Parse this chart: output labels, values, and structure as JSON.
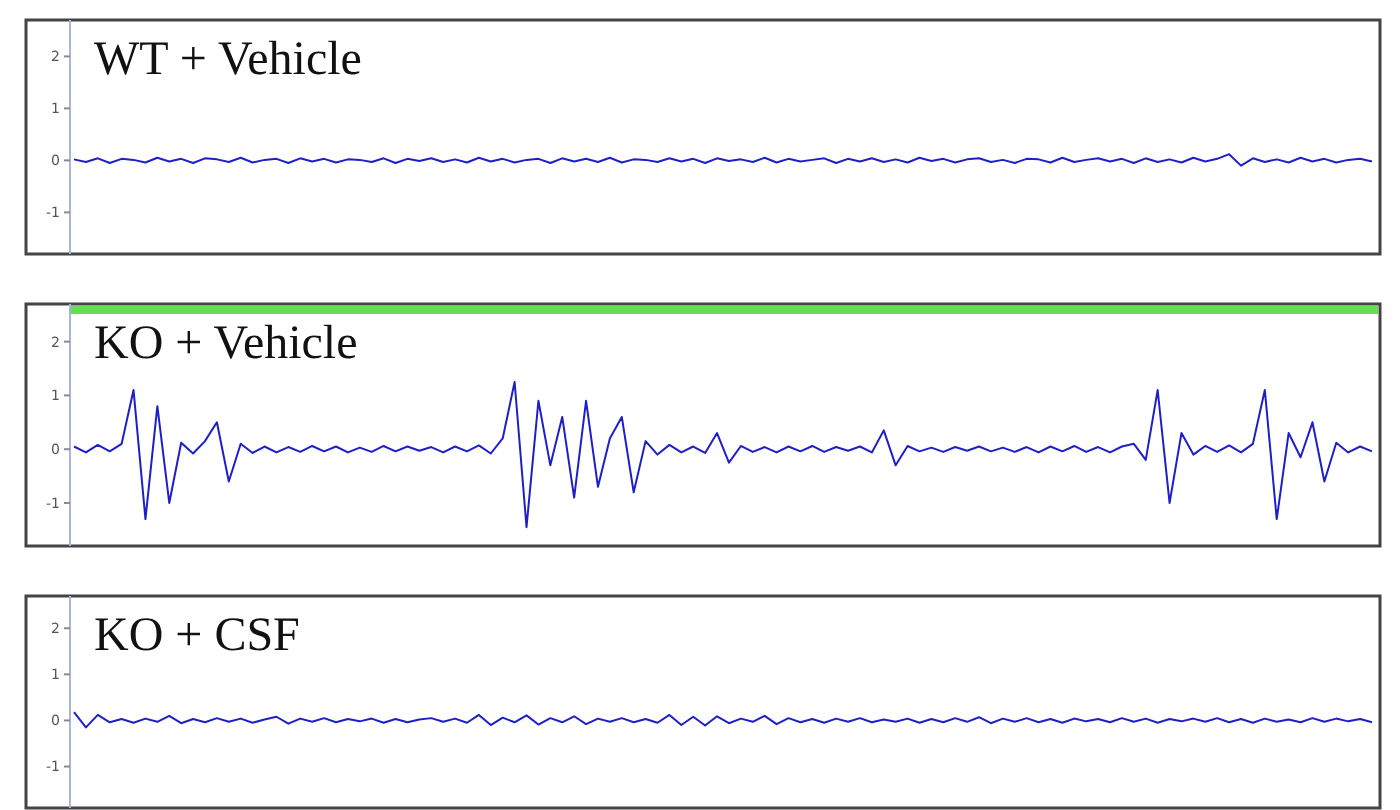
{
  "chart_data": [
    {
      "type": "line",
      "title": "WT + Vehicle",
      "categories": [
        null,
        null,
        null,
        null,
        null,
        null,
        null,
        null,
        null,
        null,
        null,
        null,
        null,
        null,
        null,
        null,
        null,
        null,
        null,
        null,
        null,
        null,
        null,
        null,
        null,
        null,
        null,
        null,
        null,
        null,
        null,
        null,
        null,
        null,
        null,
        null,
        null,
        null,
        null,
        null,
        null,
        null,
        null,
        null,
        null,
        null,
        null,
        null,
        null,
        null,
        null,
        null,
        null,
        null,
        null,
        null,
        null,
        null,
        null,
        null,
        null,
        null,
        null,
        null,
        null,
        null,
        null,
        null,
        null,
        null,
        null,
        null,
        null,
        null,
        null,
        null,
        null,
        null,
        null,
        null,
        null,
        null,
        null,
        null,
        null,
        null,
        null,
        null,
        null,
        null,
        null,
        null,
        null,
        null,
        null,
        null,
        null,
        null,
        null,
        null,
        null,
        null,
        null,
        null,
        null,
        null,
        null,
        null,
        null,
        null
      ],
      "ylim": [
        -1.8,
        2.7
      ],
      "yticks": [
        -1,
        0,
        1,
        2
      ],
      "series": [
        {
          "color": "#1f1fc8",
          "values": [
            0.02,
            -0.03,
            0.04,
            -0.05,
            0.03,
            0.01,
            -0.04,
            0.05,
            -0.02,
            0.03,
            -0.05,
            0.04,
            0.02,
            -0.03,
            0.05,
            -0.04,
            0.01,
            0.03,
            -0.05,
            0.04,
            -0.02,
            0.03,
            -0.04,
            0.02,
            0.01,
            -0.03,
            0.04,
            -0.05,
            0.03,
            -0.01,
            0.04,
            -0.03,
            0.02,
            -0.04,
            0.05,
            -0.02,
            0.03,
            -0.04,
            0.01,
            0.03,
            -0.05,
            0.04,
            -0.02,
            0.03,
            -0.03,
            0.05,
            -0.04,
            0.02,
            0.01,
            -0.03,
            0.04,
            -0.02,
            0.03,
            -0.05,
            0.04,
            -0.01,
            0.02,
            -0.03,
            0.05,
            -0.04,
            0.03,
            -0.02,
            0.01,
            0.04,
            -0.05,
            0.03,
            -0.02,
            0.04,
            -0.03,
            0.02,
            -0.04,
            0.05,
            -0.01,
            0.03,
            -0.04,
            0.02,
            0.04,
            -0.03,
            0.01,
            -0.05,
            0.03,
            0.02,
            -0.04,
            0.05,
            -0.03,
            0.01,
            0.04,
            -0.02,
            0.03,
            -0.05,
            0.04,
            -0.03,
            0.02,
            -0.04,
            0.05,
            -0.02,
            0.03,
            0.12,
            -0.1,
            0.04,
            -0.03,
            0.02,
            -0.04,
            0.05,
            -0.02,
            0.03,
            -0.04,
            0.01,
            0.03,
            -0.02
          ]
        }
      ]
    },
    {
      "type": "line",
      "title": "KO + Vehicle",
      "categories": [
        null,
        null,
        null,
        null,
        null,
        null,
        null,
        null,
        null,
        null,
        null,
        null,
        null,
        null,
        null,
        null,
        null,
        null,
        null,
        null,
        null,
        null,
        null,
        null,
        null,
        null,
        null,
        null,
        null,
        null,
        null,
        null,
        null,
        null,
        null,
        null,
        null,
        null,
        null,
        null,
        null,
        null,
        null,
        null,
        null,
        null,
        null,
        null,
        null,
        null,
        null,
        null,
        null,
        null,
        null,
        null,
        null,
        null,
        null,
        null,
        null,
        null,
        null,
        null,
        null,
        null,
        null,
        null,
        null,
        null,
        null,
        null,
        null,
        null,
        null,
        null,
        null,
        null,
        null,
        null,
        null,
        null,
        null,
        null,
        null,
        null,
        null,
        null,
        null,
        null,
        null,
        null,
        null,
        null,
        null,
        null,
        null,
        null,
        null,
        null,
        null,
        null,
        null,
        null,
        null,
        null,
        null,
        null,
        null,
        null
      ],
      "ylim": [
        -1.8,
        2.7
      ],
      "yticks": [
        -1,
        0,
        1,
        2
      ],
      "series": [
        {
          "color": "#1f1fc8",
          "values": [
            0.05,
            -0.06,
            0.08,
            -0.04,
            0.1,
            1.1,
            -1.3,
            0.8,
            -1.0,
            0.12,
            -0.08,
            0.15,
            0.5,
            -0.6,
            0.1,
            -0.07,
            0.05,
            -0.06,
            0.04,
            -0.05,
            0.06,
            -0.04,
            0.05,
            -0.06,
            0.03,
            -0.05,
            0.06,
            -0.04,
            0.05,
            -0.03,
            0.04,
            -0.06,
            0.05,
            -0.04,
            0.07,
            -0.08,
            0.2,
            1.25,
            -1.45,
            0.9,
            -0.3,
            0.6,
            -0.9,
            0.9,
            -0.7,
            0.2,
            0.6,
            -0.8,
            0.15,
            -0.1,
            0.08,
            -0.06,
            0.05,
            -0.07,
            0.3,
            -0.25,
            0.06,
            -0.05,
            0.04,
            -0.06,
            0.05,
            -0.04,
            0.06,
            -0.05,
            0.04,
            -0.03,
            0.05,
            -0.06,
            0.35,
            -0.3,
            0.06,
            -0.04,
            0.03,
            -0.05,
            0.04,
            -0.03,
            0.05,
            -0.04,
            0.03,
            -0.05,
            0.04,
            -0.06,
            0.05,
            -0.04,
            0.06,
            -0.05,
            0.04,
            -0.06,
            0.05,
            0.1,
            -0.2,
            1.1,
            -1.0,
            0.3,
            -0.1,
            0.06,
            -0.05,
            0.07,
            -0.06,
            0.1,
            1.1,
            -1.3,
            0.3,
            -0.15,
            0.5,
            -0.6,
            0.12,
            -0.06,
            0.05,
            -0.04
          ]
        }
      ]
    },
    {
      "type": "line",
      "title": "KO + CSF",
      "categories": [
        null,
        null,
        null,
        null,
        null,
        null,
        null,
        null,
        null,
        null,
        null,
        null,
        null,
        null,
        null,
        null,
        null,
        null,
        null,
        null,
        null,
        null,
        null,
        null,
        null,
        null,
        null,
        null,
        null,
        null,
        null,
        null,
        null,
        null,
        null,
        null,
        null,
        null,
        null,
        null,
        null,
        null,
        null,
        null,
        null,
        null,
        null,
        null,
        null,
        null,
        null,
        null,
        null,
        null,
        null,
        null,
        null,
        null,
        null,
        null,
        null,
        null,
        null,
        null,
        null,
        null,
        null,
        null,
        null,
        null,
        null,
        null,
        null,
        null,
        null,
        null,
        null,
        null,
        null,
        null,
        null,
        null,
        null,
        null,
        null,
        null,
        null,
        null,
        null,
        null,
        null,
        null,
        null,
        null,
        null,
        null,
        null,
        null,
        null,
        null,
        null,
        null,
        null,
        null,
        null,
        null,
        null,
        null,
        null,
        null
      ],
      "ylim": [
        -1.9,
        2.7
      ],
      "yticks": [
        -1,
        0,
        1,
        2
      ],
      "series": [
        {
          "color": "#1f1fc8",
          "values": [
            0.18,
            -0.15,
            0.12,
            -0.04,
            0.03,
            -0.05,
            0.04,
            -0.03,
            0.1,
            -0.06,
            0.03,
            -0.04,
            0.05,
            -0.03,
            0.04,
            -0.05,
            0.02,
            0.08,
            -0.07,
            0.04,
            -0.03,
            0.05,
            -0.04,
            0.03,
            -0.02,
            0.04,
            -0.05,
            0.03,
            -0.04,
            0.02,
            0.05,
            -0.03,
            0.04,
            -0.05,
            0.12,
            -0.1,
            0.06,
            -0.04,
            0.11,
            -0.09,
            0.05,
            -0.04,
            0.09,
            -0.08,
            0.04,
            -0.03,
            0.05,
            -0.04,
            0.03,
            -0.05,
            0.12,
            -0.1,
            0.08,
            -0.11,
            0.09,
            -0.06,
            0.04,
            -0.03,
            0.1,
            -0.08,
            0.05,
            -0.04,
            0.03,
            -0.05,
            0.04,
            -0.03,
            0.05,
            -0.04,
            0.02,
            -0.03,
            0.04,
            -0.05,
            0.03,
            -0.04,
            0.05,
            -0.03,
            0.07,
            -0.06,
            0.04,
            -0.03,
            0.05,
            -0.04,
            0.03,
            -0.05,
            0.04,
            -0.02,
            0.03,
            -0.04,
            0.05,
            -0.03,
            0.04,
            -0.05,
            0.03,
            -0.02,
            0.04,
            -0.03,
            0.05,
            -0.04,
            0.03,
            -0.05,
            0.04,
            -0.03,
            0.02,
            -0.04,
            0.05,
            -0.03,
            0.04,
            -0.02,
            0.03,
            -0.04
          ]
        }
      ]
    }
  ]
}
